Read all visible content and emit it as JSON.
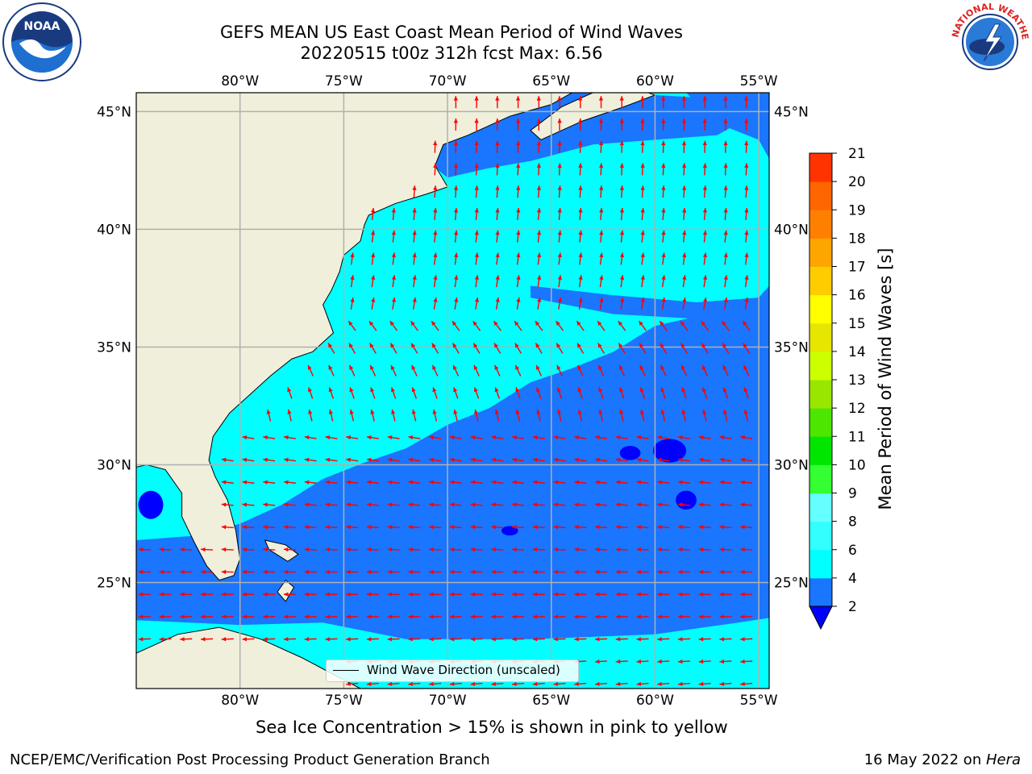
{
  "title": {
    "line1": "GEFS MEAN US East Coast Mean Period of Wind Waves",
    "line2": "20220515 t00z 312h fcst   Max: 6.56"
  },
  "axes": {
    "lon_labels": [
      "80°W",
      "75°W",
      "70°W",
      "65°W",
      "60°W",
      "55°W"
    ],
    "lon_values": [
      -80,
      -75,
      -70,
      -65,
      -60,
      -55
    ],
    "lat_labels": [
      "45°N",
      "40°N",
      "35°N",
      "30°N",
      "25°N"
    ],
    "lat_values": [
      45,
      40,
      35,
      30,
      25
    ],
    "lon_range": [
      -85,
      -54.5
    ],
    "lat_range": [
      20.5,
      45.8
    ],
    "grid": true
  },
  "colorbar": {
    "label": "Mean Period of Wind Waves [s]",
    "ticks": [
      "2",
      "4",
      "6",
      "8",
      "9",
      "10",
      "11",
      "12",
      "13",
      "14",
      "15",
      "16",
      "17",
      "18",
      "19",
      "20",
      "21"
    ],
    "colors": [
      "#1a75ff",
      "#00ffff",
      "#33ffff",
      "#66ffff",
      "#99ffff",
      "#4dff80",
      "#33ff33",
      "#00e600",
      "#4ce600",
      "#99e600",
      "#ccff00",
      "#e6e600",
      "#ffff00",
      "#ffcc00",
      "#ffa500",
      "#ff8000",
      "#ff6600",
      "#ff3300",
      "#ff0000"
    ],
    "under_color": "#0000ff"
  },
  "colors": {
    "land": "#efefdb",
    "ocean_dark": "#1a75ff",
    "ocean_light": "#00ffff",
    "ocean_deep": "#0000ff",
    "arrow": "#ff0000",
    "grid": "#b0b0b0"
  },
  "legend": {
    "text": "Wind Wave Direction (unscaled)"
  },
  "notes": {
    "sea_ice": "Sea Ice Concentration > 15% is shown in pink to yellow",
    "credit": "NCEP/EMC/Verification Post Processing Product Generation Branch",
    "date_prefix": "16 May 2022 on ",
    "machine": "Hera"
  },
  "logos": {
    "left_icon": "noaa-logo-icon",
    "right_icon": "nws-logo-icon",
    "left_text": "NOAA",
    "right_text": "NATIONAL WEATHER SERVICE"
  }
}
